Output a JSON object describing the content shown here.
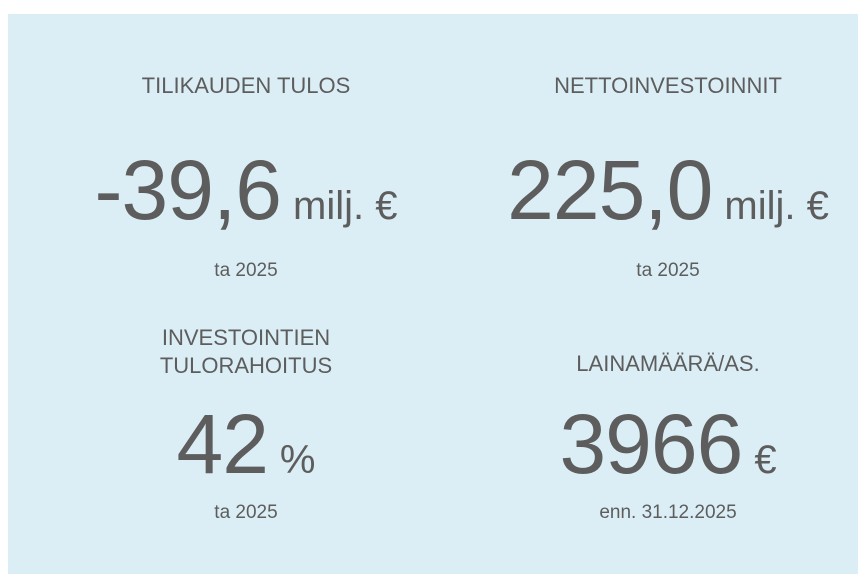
{
  "kpis": [
    {
      "label": "TILIKAUDEN TULOS",
      "value": "-39,6",
      "unit": "milj. €",
      "note": "ta 2025"
    },
    {
      "label": "NETTOINVESTOINNIT",
      "value": "225,0",
      "unit": "milj. €",
      "note": "ta 2025"
    },
    {
      "label": "INVESTOINTIEN TULORAHOITUS",
      "value": "42",
      "unit": "%",
      "note": "ta 2025"
    },
    {
      "label": "LAINAMÄÄRÄ/AS.",
      "value": "3966",
      "unit": "€",
      "note": "enn. 31.12.2025"
    }
  ]
}
